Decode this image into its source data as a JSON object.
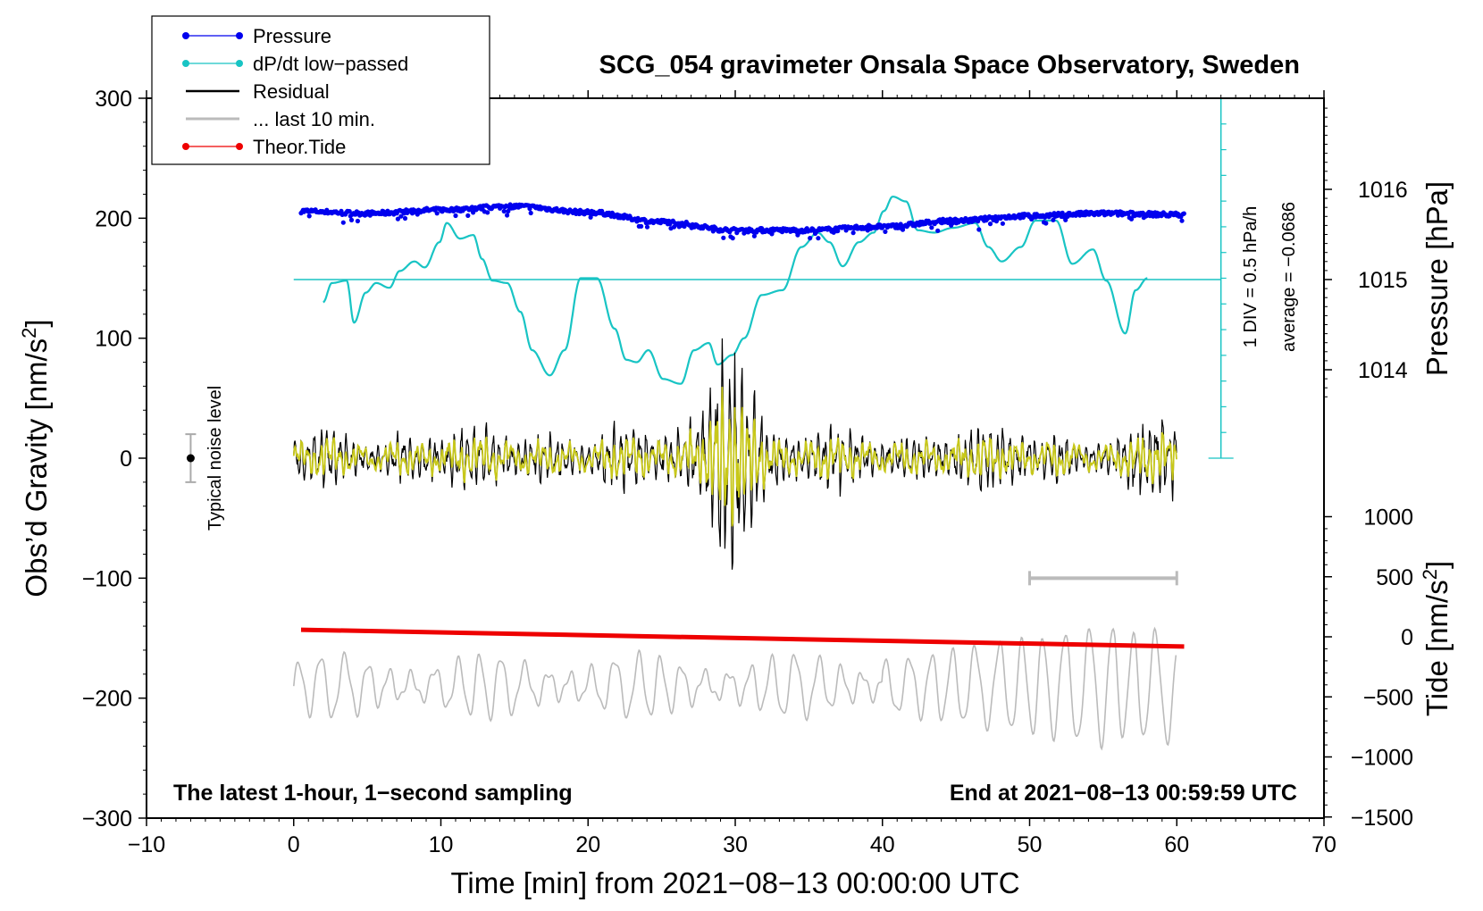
{
  "chart_data": {
    "type": "line",
    "title": "SCG_054 gravimeter Onsala Space Observatory, Sweden",
    "xlabel": "Time [min] from 2021−08−13 00:00:00 UTC",
    "ylabel_main": "Obs’d Gravity [nm/s",
    "ylabel_main_sup": "2",
    "ylabel_main_close": "]",
    "ylabel_pressure": "Pressure [hPa]",
    "ylabel_tide": "Tide [nm/s",
    "ylabel_tide_sup": "2",
    "ylabel_tide_close": "]",
    "xlim": [
      -10,
      70
    ],
    "ylim": [
      -300,
      300
    ],
    "x_ticks": [
      {
        "v": -10,
        "label": "−10"
      },
      {
        "v": 0,
        "label": "0"
      },
      {
        "v": 10,
        "label": "10"
      },
      {
        "v": 20,
        "label": "20"
      },
      {
        "v": 30,
        "label": "30"
      },
      {
        "v": 40,
        "label": "40"
      },
      {
        "v": 50,
        "label": "50"
      },
      {
        "v": 60,
        "label": "60"
      },
      {
        "v": 70,
        "label": "70"
      }
    ],
    "y_ticks": [
      {
        "v": 300,
        "label": "300"
      },
      {
        "v": 200,
        "label": "200"
      },
      {
        "v": 100,
        "label": "100"
      },
      {
        "v": 0,
        "label": "0"
      },
      {
        "v": -100,
        "label": "−100"
      },
      {
        "v": -200,
        "label": "−200"
      },
      {
        "v": -300,
        "label": "−300"
      }
    ],
    "pressure_ticks": [
      {
        "v": 1016,
        "label": "1016"
      },
      {
        "v": 1015,
        "label": "1015"
      },
      {
        "v": 1014,
        "label": "1014"
      }
    ],
    "tide_ticks": [
      {
        "v": 1000,
        "label": "1000"
      },
      {
        "v": 500,
        "label": "500"
      },
      {
        "v": 0,
        "label": "0"
      },
      {
        "v": -500,
        "label": "−500"
      },
      {
        "v": -1000,
        "label": "−1000"
      },
      {
        "v": -1500,
        "label": "−1500"
      }
    ],
    "legend": [
      {
        "label": "Pressure",
        "color": "#0000ee",
        "marker": true
      },
      {
        "label": "dP/dt low−passed",
        "color": "#18c4c4",
        "marker": true
      },
      {
        "label": "Residual",
        "color": "#000000",
        "marker": false
      },
      {
        "label": "... last 10 min.",
        "color": "#bbbbbb",
        "marker": false
      },
      {
        "label": "Theor.Tide",
        "color": "#ee0000",
        "marker": true
      }
    ],
    "colors": {
      "pressure": "#0000ee",
      "dpdt": "#18c4c4",
      "residual": "#000000",
      "residual_smooth": "#c8c81a",
      "last10": "#bbbbbb",
      "tide": "#ee0000"
    },
    "pressure_curve": {
      "x": [
        0.5,
        5,
        10,
        15,
        20,
        25,
        30,
        35,
        40,
        45,
        50,
        55,
        60.5
      ],
      "y": [
        206,
        204,
        207,
        210,
        205,
        197,
        190,
        190,
        193,
        198,
        202,
        204,
        203
      ]
    },
    "dpdt_baseline_pressure": 1015,
    "dpdt_curve": {
      "x": [
        2,
        2.6,
        3.6,
        4.1,
        4.9,
        5.6,
        6.5,
        7.2,
        8.2,
        8.9,
        9.9,
        10.4,
        11.3,
        12.2,
        12.8,
        13.5,
        14.5,
        15.4,
        16.2,
        17.4,
        18.4,
        19.5,
        20.6,
        21.8,
        22.6,
        23.3,
        24.1,
        25.1,
        26.3,
        27.2,
        28.2,
        28.8,
        29.8,
        30.6,
        31.8,
        33.2,
        34.5,
        35.6,
        36.4,
        37.3,
        38.4,
        39.4,
        40.1,
        40.7,
        41.6,
        42.4,
        43.5,
        44.8,
        46.3,
        47.2,
        48.1,
        49.4,
        50.4,
        51.8,
        52.9,
        54.3,
        55.2,
        56.5,
        57.2,
        58.0
      ],
      "y": [
        130,
        146,
        148,
        113,
        138,
        146,
        142,
        156,
        164,
        159,
        180,
        196,
        183,
        186,
        166,
        148,
        146,
        122,
        90,
        69,
        90,
        150,
        150,
        108,
        82,
        80,
        90,
        66,
        62,
        90,
        96,
        78,
        86,
        100,
        136,
        140,
        176,
        188,
        180,
        160,
        180,
        188,
        206,
        218,
        214,
        190,
        188,
        192,
        196,
        176,
        164,
        176,
        198,
        198,
        162,
        174,
        148,
        104,
        140,
        150
      ]
    },
    "residual": {
      "x_range": [
        0,
        60
      ],
      "amplitude_nm_s2": 30,
      "peak_amplitude_nm_s2": 130,
      "peak_time": 29.7
    },
    "last10_curve": {
      "x_range": [
        0,
        60
      ],
      "mean": -190,
      "amplitude_range": [
        15,
        55
      ]
    },
    "tide": {
      "x": [
        0.5,
        60.5
      ],
      "y": [
        -143,
        -157
      ]
    },
    "noise_bar": {
      "x": -7,
      "center": 0,
      "halfwidth": 20
    },
    "scale_bar": {
      "x": [
        50,
        60
      ],
      "y": -100
    },
    "dpdt_scale": {
      "x": 63,
      "y_range": [
        0,
        300
      ]
    }
  },
  "annotations": {
    "noise_label": "Typical noise level",
    "dpdt_scale_label": "1 DIV = 0.5 hPa/h",
    "average_label": "average = −0.0686",
    "latest_label": "The latest 1-hour, 1−second sampling",
    "end_label": "End at 2021−08−13 00:59:59 UTC"
  }
}
